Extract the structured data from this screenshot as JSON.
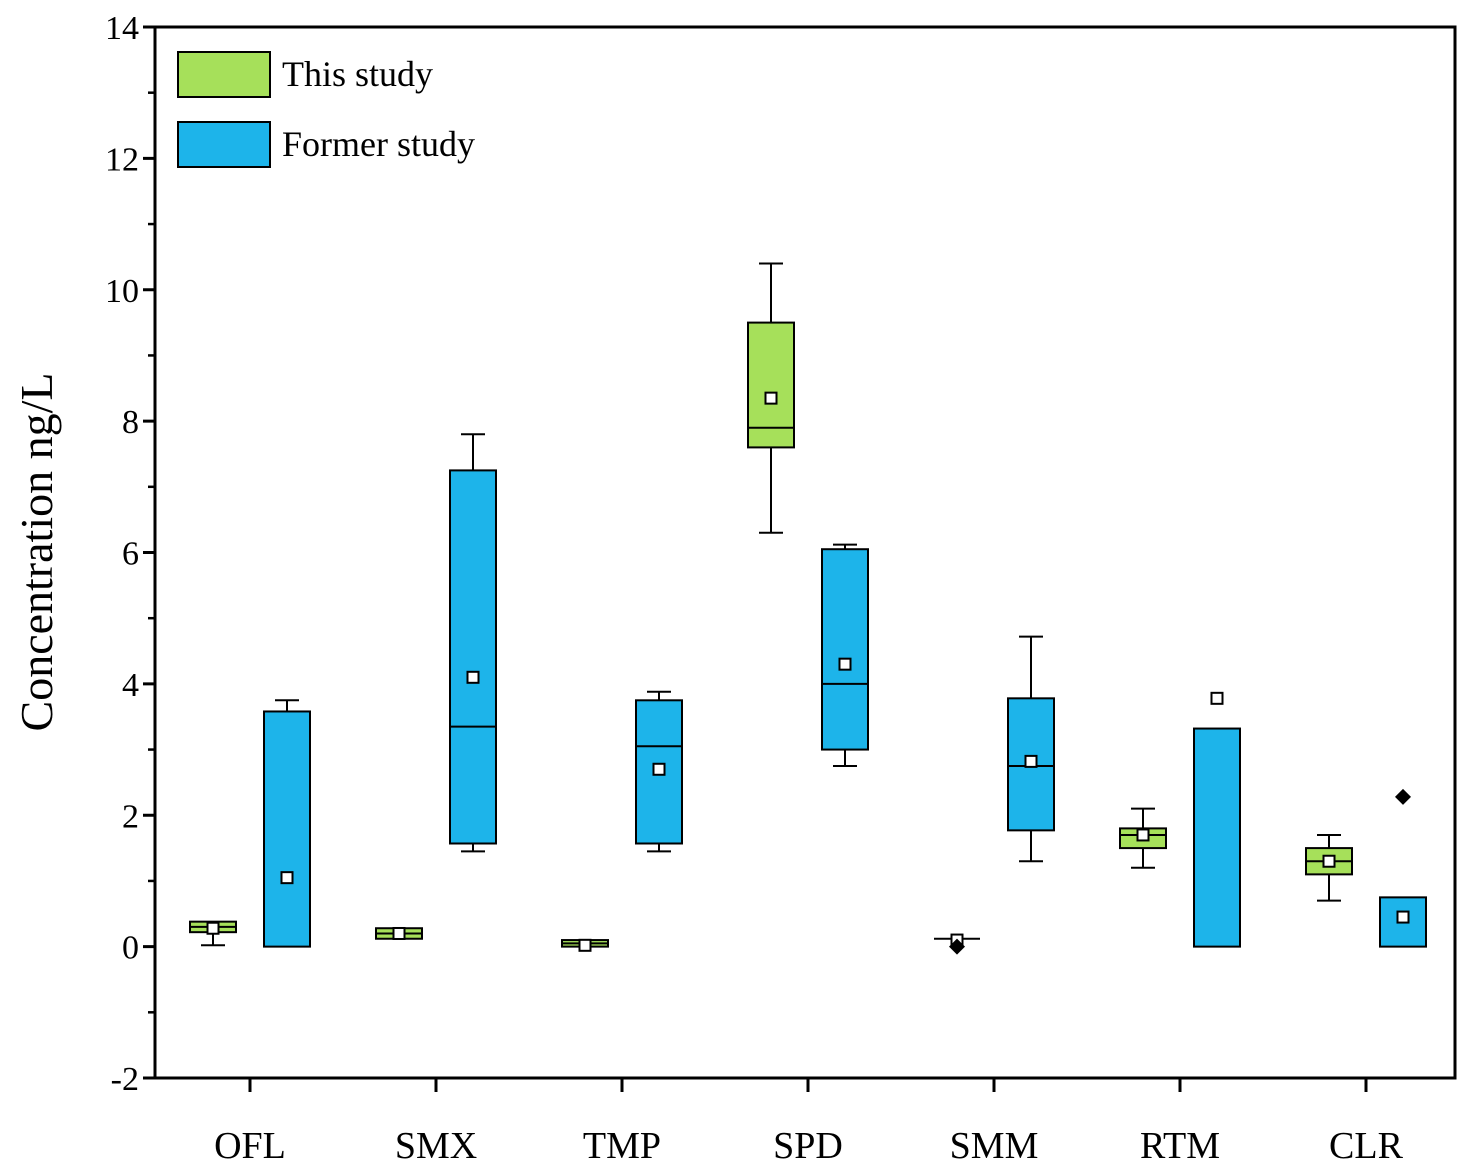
{
  "chart_data": {
    "type": "box",
    "title": "",
    "xlabel": "",
    "ylabel": "Concentration ng/L",
    "ylim": [
      -2,
      14
    ],
    "yticks": [
      -2,
      0,
      2,
      4,
      6,
      8,
      10,
      12,
      14
    ],
    "categories": [
      "OFL",
      "SMX",
      "TMP",
      "SPD",
      "SMM",
      "RTM",
      "CLR"
    ],
    "legend_position": "top-left",
    "series": [
      {
        "name": "This study",
        "color": "#a6e05a",
        "boxes": [
          {
            "category": "OFL",
            "whisker_low": 0.02,
            "q1": 0.22,
            "median": 0.3,
            "q3": 0.38,
            "whisker_high": 0.38,
            "mean": 0.28,
            "outliers": []
          },
          {
            "category": "SMX",
            "whisker_low": 0.12,
            "q1": 0.12,
            "median": 0.2,
            "q3": 0.28,
            "whisker_high": 0.28,
            "mean": 0.2,
            "outliers": []
          },
          {
            "category": "TMP",
            "whisker_low": 0.0,
            "q1": 0.0,
            "median": 0.05,
            "q3": 0.1,
            "whisker_high": 0.1,
            "mean": 0.02,
            "outliers": []
          },
          {
            "category": "SPD",
            "whisker_low": 6.3,
            "q1": 7.6,
            "median": 7.9,
            "q3": 9.5,
            "whisker_high": 10.4,
            "mean": 8.35,
            "outliers": []
          },
          {
            "category": "SMM",
            "whisker_low": 0.12,
            "q1": 0.12,
            "median": 0.12,
            "q3": 0.12,
            "whisker_high": 0.12,
            "mean": 0.1,
            "outliers": [
              0.0
            ]
          },
          {
            "category": "RTM",
            "whisker_low": 1.2,
            "q1": 1.5,
            "median": 1.7,
            "q3": 1.8,
            "whisker_high": 2.1,
            "mean": 1.7,
            "outliers": []
          },
          {
            "category": "CLR",
            "whisker_low": 0.7,
            "q1": 1.1,
            "median": 1.3,
            "q3": 1.5,
            "whisker_high": 1.7,
            "mean": 1.3,
            "outliers": []
          }
        ]
      },
      {
        "name": "Former study",
        "color": "#1db4ea",
        "boxes": [
          {
            "category": "OFL",
            "whisker_low": 0.0,
            "q1": 0.0,
            "median": 0.0,
            "q3": 3.58,
            "whisker_high": 3.75,
            "mean": 1.05,
            "outliers": []
          },
          {
            "category": "SMX",
            "whisker_low": 1.45,
            "q1": 1.57,
            "median": 3.35,
            "q3": 7.25,
            "whisker_high": 7.8,
            "mean": 4.1,
            "outliers": []
          },
          {
            "category": "TMP",
            "whisker_low": 1.45,
            "q1": 1.57,
            "median": 3.05,
            "q3": 3.75,
            "whisker_high": 3.88,
            "mean": 2.7,
            "outliers": []
          },
          {
            "category": "SPD",
            "whisker_low": 2.75,
            "q1": 3.0,
            "median": 4.0,
            "q3": 6.05,
            "whisker_high": 6.12,
            "mean": 4.3,
            "outliers": []
          },
          {
            "category": "SMM",
            "whisker_low": 1.3,
            "q1": 1.77,
            "median": 2.75,
            "q3": 3.78,
            "whisker_high": 4.72,
            "mean": 2.82,
            "outliers": []
          },
          {
            "category": "RTM",
            "whisker_low": 0.0,
            "q1": 0.0,
            "median": 0.0,
            "q3": 3.32,
            "whisker_high": 3.32,
            "mean": 3.78,
            "outliers": []
          },
          {
            "category": "CLR",
            "whisker_low": 0.0,
            "q1": 0.0,
            "median": 0.0,
            "q3": 0.75,
            "whisker_high": 0.75,
            "mean": 0.45,
            "outliers": [
              2.28
            ]
          }
        ]
      }
    ]
  }
}
